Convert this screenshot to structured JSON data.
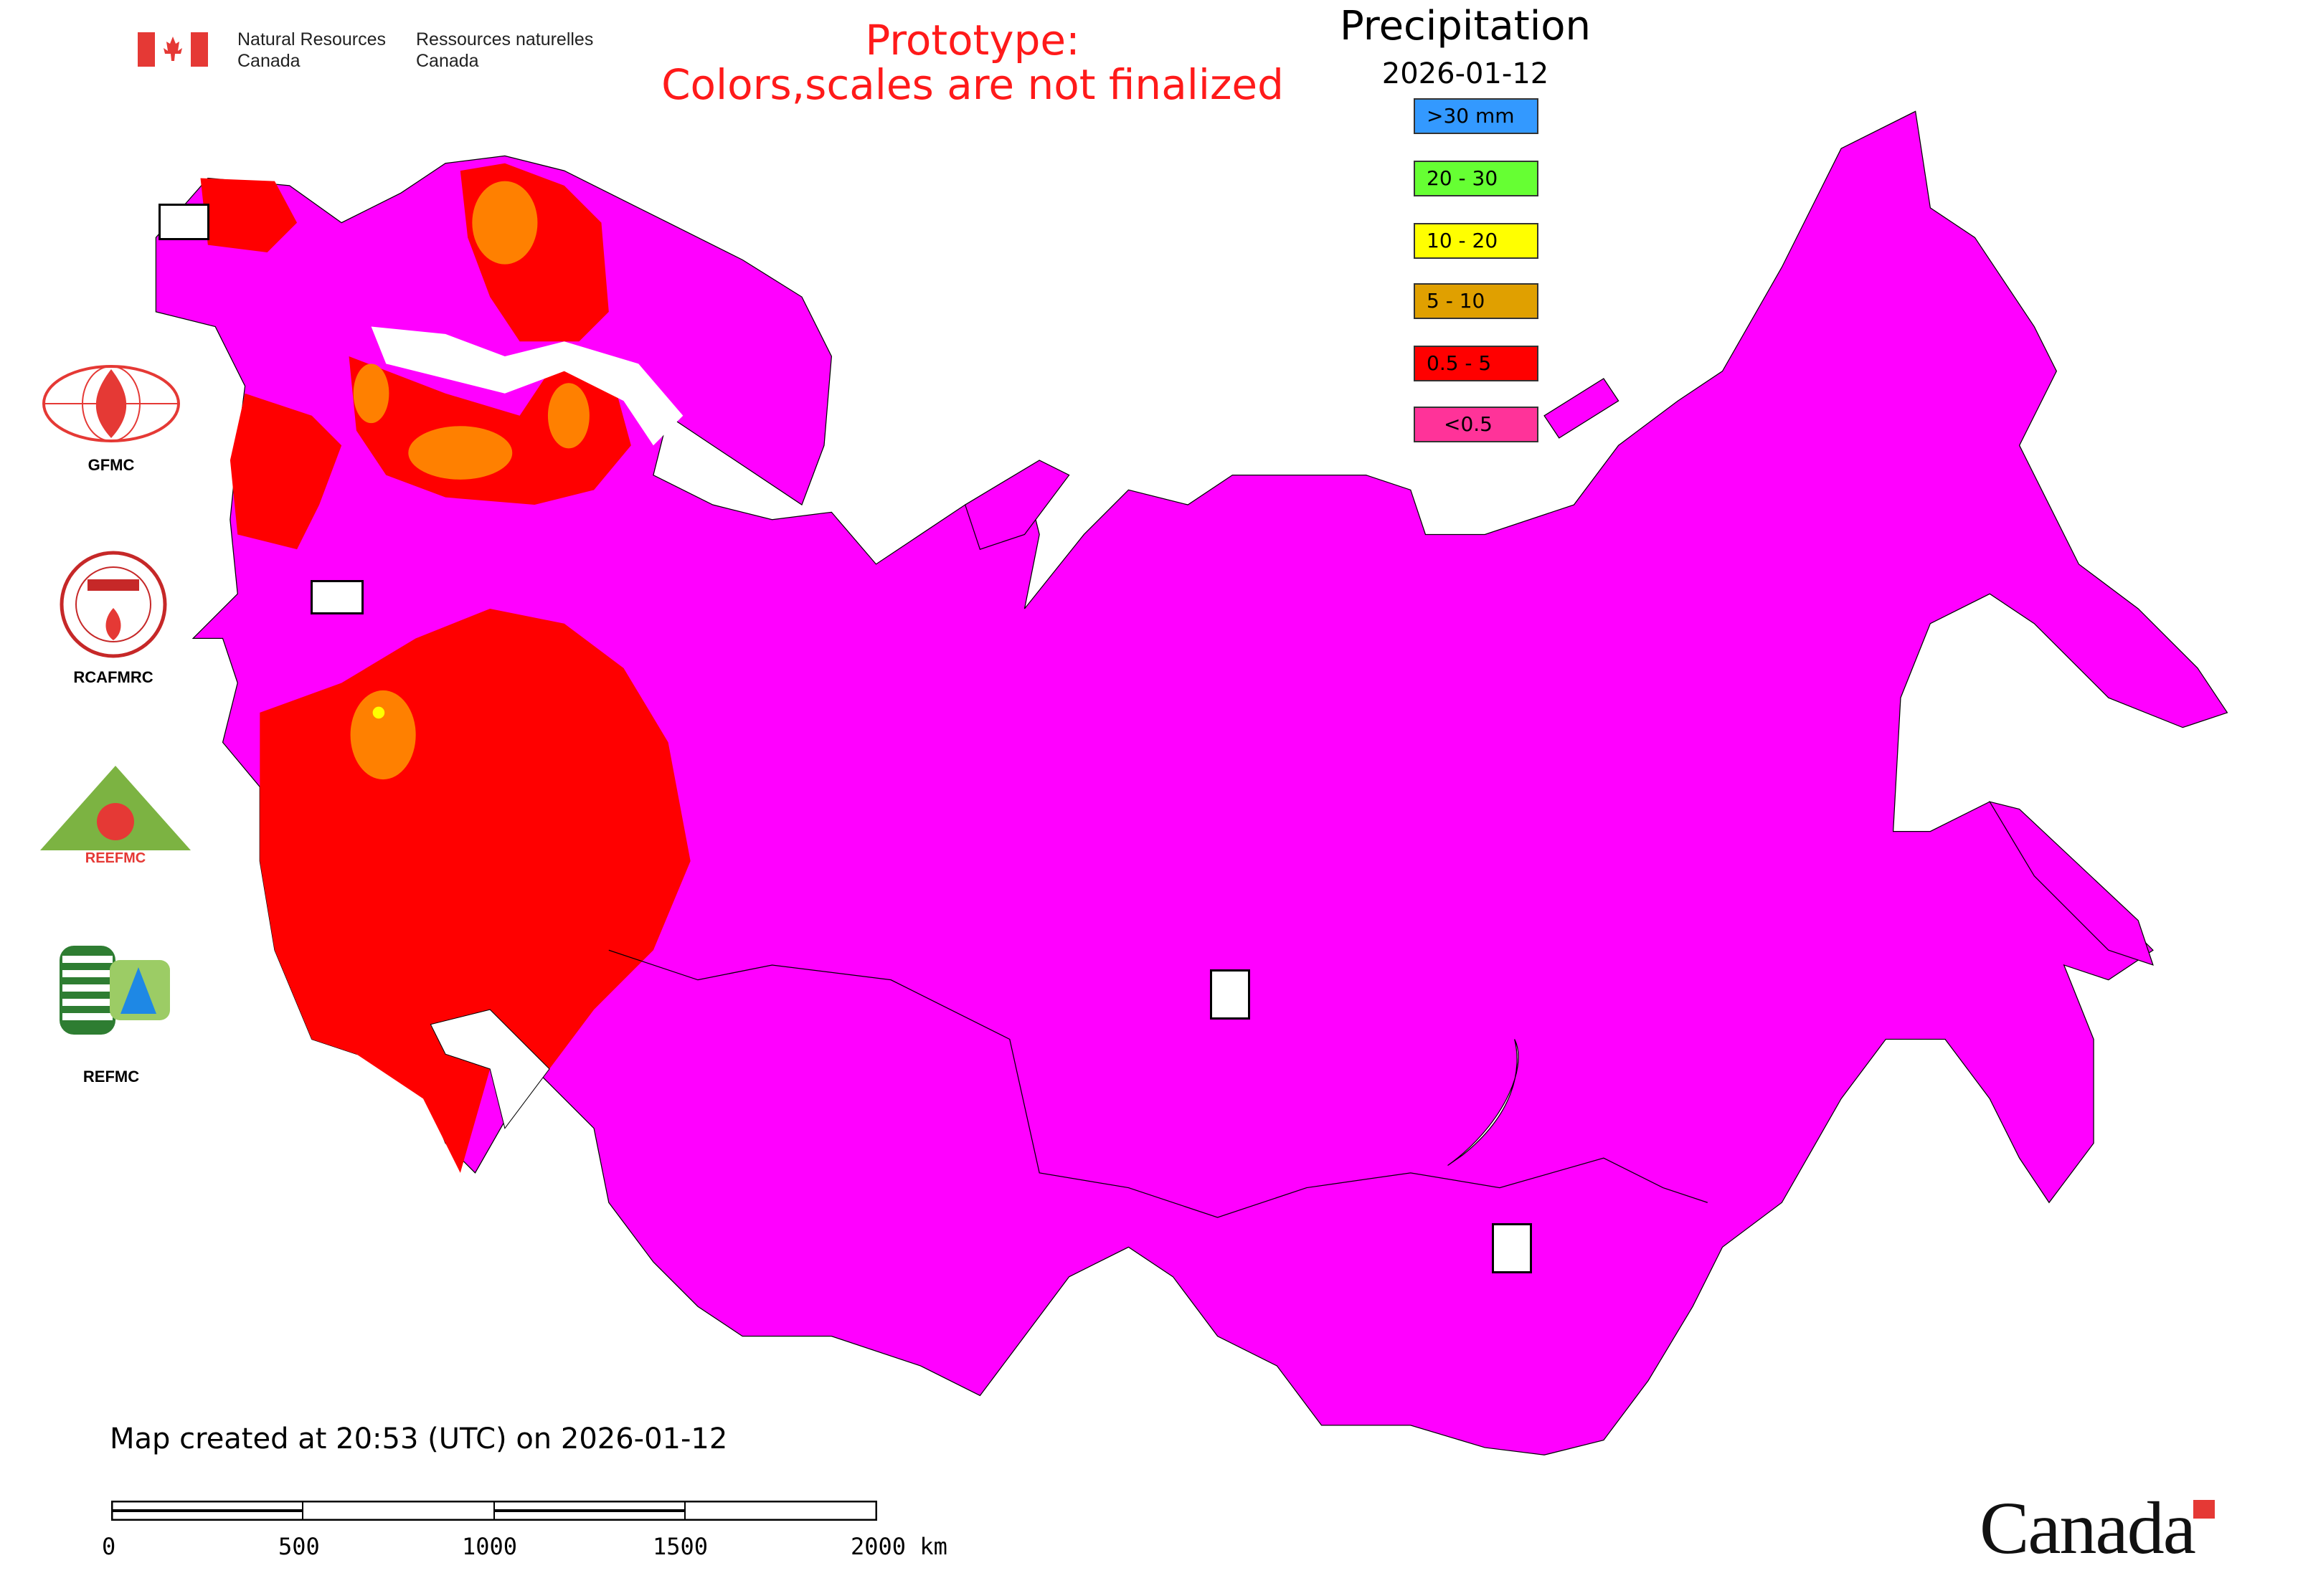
{
  "header": {
    "agency_en_line1": "Natural Resources",
    "agency_en_line2": "Canada",
    "agency_fr_line1": "Ressources naturelles",
    "agency_fr_line2": "Canada",
    "notice_line1": "Prototype:",
    "notice_line2": "Colors,scales are not finalized"
  },
  "legend": {
    "title": "Precipitation",
    "date": "2026-01-12",
    "items": [
      {
        "label": ">30 mm",
        "color": "#3399ff"
      },
      {
        "label": "20 - 30",
        "color": "#66ff33"
      },
      {
        "label": "10 - 20",
        "color": "#ffff00"
      },
      {
        "label": "5 - 10",
        "color": "#e0a000"
      },
      {
        "label": "0.5 - 5",
        "color": "#ff0000"
      },
      {
        "label": "<0.5",
        "color": "#ff3399"
      }
    ]
  },
  "organizations": [
    {
      "label": "GFMC",
      "icon": "gfmc-logo"
    },
    {
      "label": "RCAFMRC",
      "icon": "rcafmrc-logo"
    },
    {
      "label": "REEFMC",
      "icon": "reefmc-logo"
    },
    {
      "label": "REFMC",
      "icon": "refmc-logo"
    }
  ],
  "map_colors": {
    "land_low": "#ff00ff",
    "red": "#ff0000",
    "orange": "#ff8000",
    "yellow": "#ffff00"
  },
  "footer": {
    "created": "Map created at 20:53 (UTC) on 2026-01-12",
    "scale_labels": [
      "0",
      "500",
      "1000",
      "1500",
      "2000 km"
    ],
    "wordmark": "Canada"
  }
}
